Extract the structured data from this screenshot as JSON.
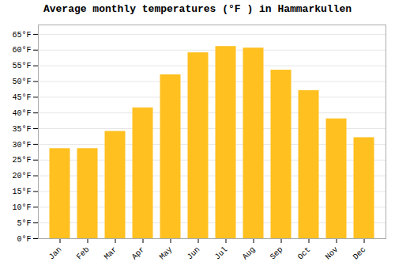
{
  "chart_data": {
    "type": "bar",
    "title": "Average monthly temperatures (°F ) in Hammarkullen",
    "categories": [
      "Jan",
      "Feb",
      "Mar",
      "Apr",
      "May",
      "Jun",
      "Jul",
      "Aug",
      "Sep",
      "Oct",
      "Nov",
      "Dec"
    ],
    "values": [
      28.5,
      28.5,
      34.0,
      41.5,
      52.0,
      59.0,
      61.0,
      60.5,
      53.5,
      47.0,
      38.0,
      32.0
    ],
    "color": "#FFC020",
    "ylim": [
      0,
      68
    ],
    "yticks": [
      {
        "value": 0,
        "label": "0°F"
      },
      {
        "value": 5,
        "label": "5°F"
      },
      {
        "value": 10,
        "label": "10°F"
      },
      {
        "value": 15,
        "label": "15°F"
      },
      {
        "value": 20,
        "label": "20°F"
      },
      {
        "value": 25,
        "label": "25°F"
      },
      {
        "value": 30,
        "label": "30°F"
      },
      {
        "value": 35,
        "label": "35°F"
      },
      {
        "value": 40,
        "label": "40°F"
      },
      {
        "value": 45,
        "label": "45°F"
      },
      {
        "value": 50,
        "label": "50°F"
      },
      {
        "value": 55,
        "label": "55°F"
      },
      {
        "value": 60,
        "label": "60°F"
      },
      {
        "value": 65,
        "label": "65°F"
      }
    ],
    "grid": true
  }
}
